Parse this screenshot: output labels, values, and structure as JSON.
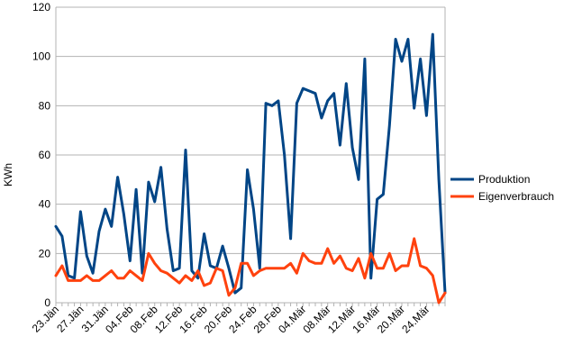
{
  "chart_data": {
    "type": "line",
    "ylabel": "KWh",
    "ylim": [
      0,
      120
    ],
    "yticks": [
      0,
      20,
      40,
      60,
      80,
      100,
      120
    ],
    "grid": "horizontal",
    "legend_position": "right",
    "x_tick_labels": [
      "23.Jän",
      "27.Jän",
      "31.Jän",
      "04.Feb",
      "08.Feb",
      "12.Feb",
      "16.Feb",
      "20.Feb",
      "24.Feb",
      "28.Feb",
      "04.Mär",
      "08.Mär",
      "12.Mär",
      "16.Mär",
      "20.Mär",
      "24.Mär"
    ],
    "x_tick_every": 4,
    "categories_count": 64,
    "series": [
      {
        "name": "Produktion",
        "color": "#004586",
        "values": [
          31,
          27,
          11,
          10,
          37,
          19,
          12,
          29,
          38,
          31,
          51,
          36,
          17,
          46,
          12,
          49,
          41,
          55,
          30,
          13,
          14,
          62,
          13,
          10,
          28,
          15,
          14,
          23,
          14,
          4,
          6,
          54,
          38,
          14,
          81,
          80,
          82,
          60,
          26,
          81,
          87,
          86,
          85,
          75,
          82,
          85,
          64,
          89,
          63,
          50,
          99,
          10,
          42,
          44,
          72,
          107,
          98,
          107,
          79,
          99,
          76,
          109,
          50,
          4
        ]
      },
      {
        "name": "Eigenverbrauch",
        "color": "#FF420E",
        "values": [
          11,
          15,
          9,
          9,
          9,
          11,
          9,
          9,
          11,
          13,
          10,
          10,
          13,
          11,
          9,
          20,
          16,
          13,
          12,
          10,
          8,
          11,
          9,
          13,
          7,
          8,
          14,
          13,
          3,
          6,
          16,
          16,
          11,
          13,
          14,
          14,
          14,
          14,
          16,
          12,
          20,
          17,
          16,
          16,
          22,
          16,
          19,
          14,
          13,
          18,
          10,
          20,
          14,
          14,
          20,
          13,
          15,
          15,
          26,
          15,
          14,
          11,
          0,
          4
        ]
      }
    ]
  }
}
